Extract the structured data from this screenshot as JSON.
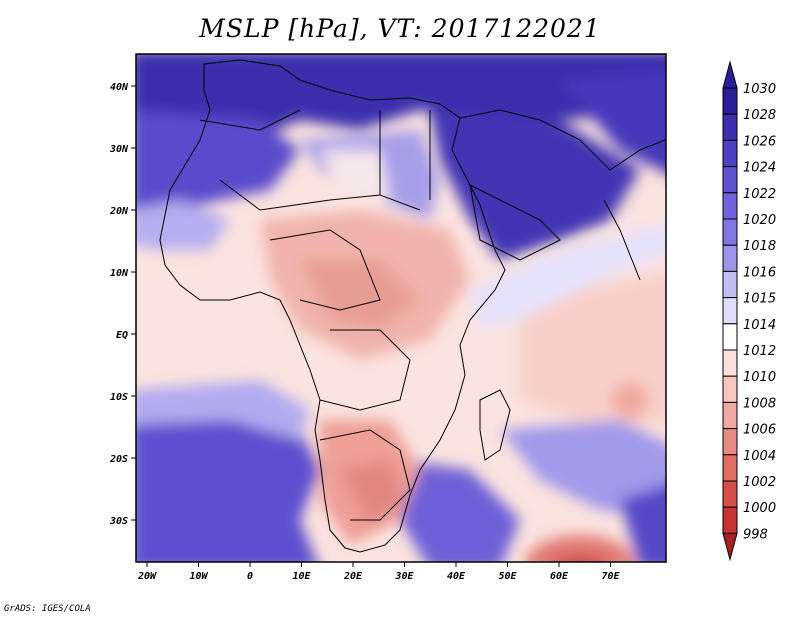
{
  "title": "MSLP [hPa], VT: 2017122021",
  "credit": "GrADS: IGES/COLA",
  "map": {
    "lon_labels": [
      "20W",
      "10W",
      "0",
      "10E",
      "20E",
      "30E",
      "40E",
      "50E",
      "60E",
      "70E"
    ],
    "lat_labels": [
      "40N",
      "30N",
      "20N",
      "10N",
      "EQ",
      "10S",
      "20S",
      "30S"
    ]
  },
  "colorbar": {
    "labels": [
      "1030",
      "1028",
      "1026",
      "1024",
      "1022",
      "1020",
      "1018",
      "1016",
      "1015",
      "1014",
      "1012",
      "1010",
      "1008",
      "1006",
      "1004",
      "1002",
      "1000",
      "998"
    ],
    "colors": [
      "#2a1e9a",
      "#3d2eb0",
      "#4e40c2",
      "#5f52d0",
      "#7063db",
      "#8276e3",
      "#9d93ea",
      "#c2bdf3",
      "#e0ddfa",
      "#ffffff",
      "#fce0dc",
      "#f8c6c0",
      "#f0a8a0",
      "#e88a82",
      "#e06c64",
      "#d84e48",
      "#c83232",
      "#a82020"
    ]
  }
}
